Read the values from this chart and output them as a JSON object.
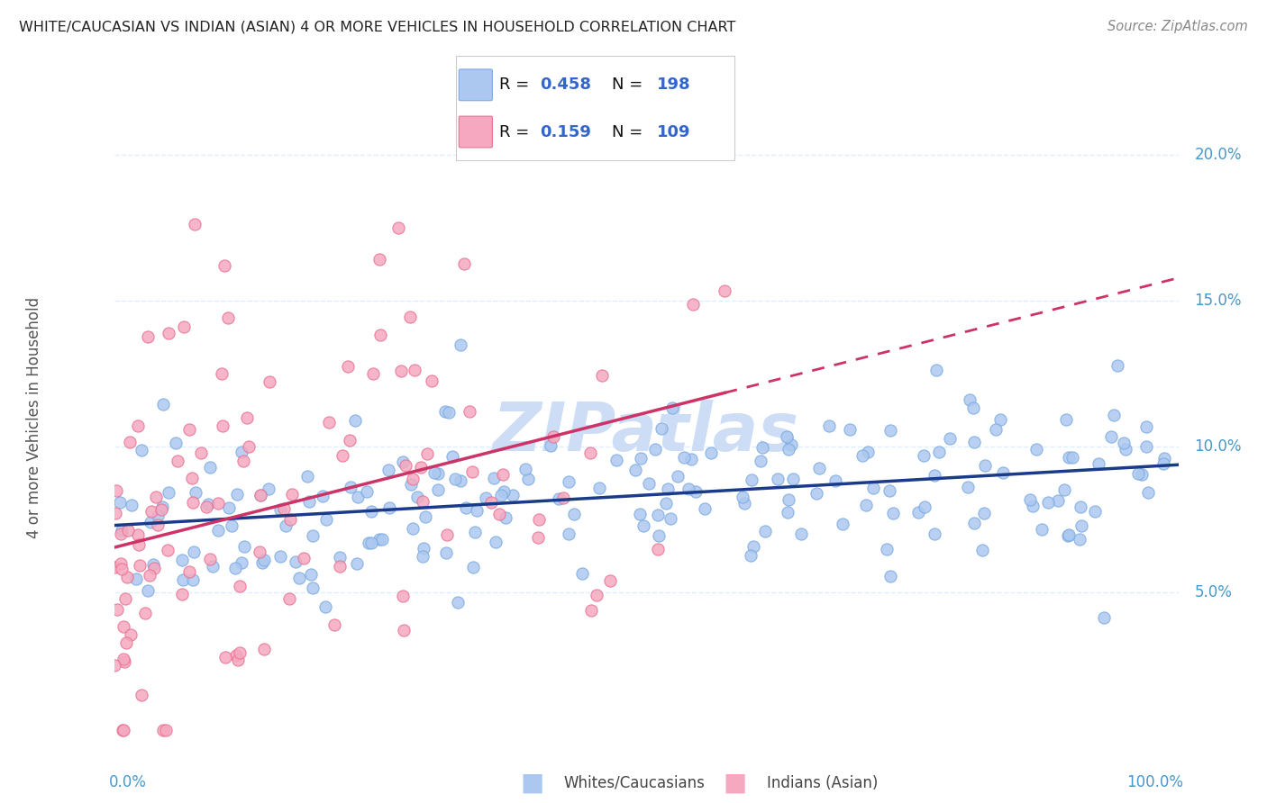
{
  "title": "WHITE/CAUCASIAN VS INDIAN (ASIAN) 4 OR MORE VEHICLES IN HOUSEHOLD CORRELATION CHART",
  "source": "Source: ZipAtlas.com",
  "ylabel": "4 or more Vehicles in Household",
  "blue_R": 0.458,
  "blue_N": 198,
  "pink_R": 0.159,
  "pink_N": 109,
  "blue_color": "#adc8f0",
  "pink_color": "#f5a8bf",
  "blue_edge_color": "#7aaae0",
  "pink_edge_color": "#e87090",
  "blue_line_color": "#1a3a8a",
  "pink_line_color": "#cc3366",
  "title_color": "#222222",
  "source_color": "#888888",
  "ylabel_color": "#555555",
  "ytick_color": "#4499cc",
  "xtick_color": "#4499cc",
  "legend_text_color": "#111111",
  "legend_val_color": "#3366cc",
  "watermark_color": "#ccddf5",
  "watermark_text": "ZIPatlas",
  "grid_color": "#ddeeff",
  "ylim": [
    0,
    22
  ],
  "xlim": [
    0,
    100
  ],
  "ytick_vals": [
    5.0,
    10.0,
    15.0,
    20.0
  ],
  "blue_seed": 42,
  "pink_seed": 123,
  "legend_labels": [
    "Whites/Caucasians",
    "Indians (Asian)"
  ]
}
